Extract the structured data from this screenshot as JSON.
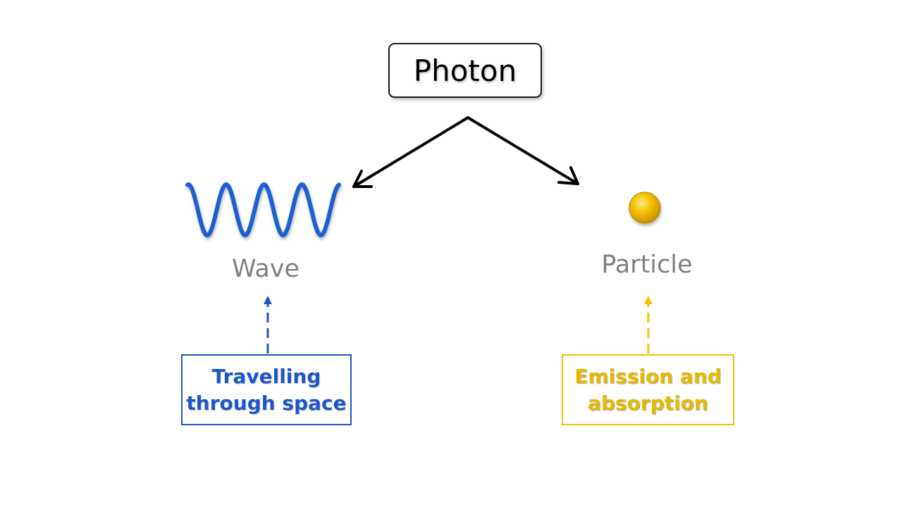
{
  "diagram": {
    "root": "Photon",
    "wave": {
      "label": "Wave",
      "note_line1": "Travelling",
      "note_line2": "through space"
    },
    "particle": {
      "label": "Particle",
      "note_line1": "Emission and",
      "note_line2": "absorption"
    }
  },
  "colors": {
    "root_text": "#000000",
    "arrow": "#000000",
    "label_gray": "#808080",
    "wave_blue": "#1f5fd0",
    "wave_note_blue": "#1e56c8",
    "particle_gold": "#f2c200",
    "particle_note_gold": "#e6b800"
  },
  "icons": {
    "wave": "sine-wave-icon",
    "particle": "sphere-icon"
  }
}
